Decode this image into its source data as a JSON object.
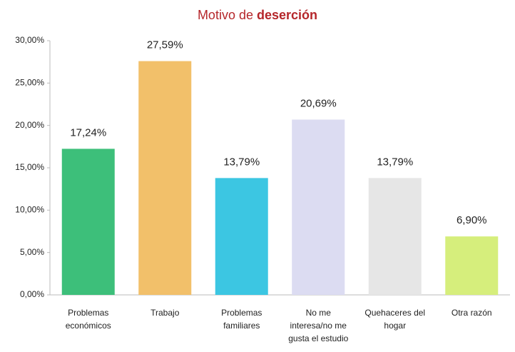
{
  "chart_data": {
    "type": "bar",
    "title": [
      "Motivo de",
      "deserción"
    ],
    "categories": [
      [
        "Problemas",
        "económicos"
      ],
      [
        "Trabajo"
      ],
      [
        "Problemas",
        "familiares"
      ],
      [
        "No me",
        "interesa/no me",
        "gusta el estudio"
      ],
      [
        "Quehaceres del",
        "hogar"
      ],
      [
        "Otra razón"
      ]
    ],
    "values": [
      17.24,
      27.59,
      13.79,
      20.69,
      13.79,
      6.9
    ],
    "value_labels": [
      "17,24%",
      "27,59%",
      "13,79%",
      "20,69%",
      "13,79%",
      "6,90%"
    ],
    "colors": [
      "#3dbf7a",
      "#f2c06a",
      "#3cc6e2",
      "#dcdcf2",
      "#e6e6e6",
      "#d6ee7c"
    ],
    "ylim": [
      0,
      30
    ],
    "yticks": [
      {
        "value": 0,
        "label": "0,00%"
      },
      {
        "value": 5,
        "label": "5,00%"
      },
      {
        "value": 10,
        "label": "10,00%"
      },
      {
        "value": 15,
        "label": "15,00%"
      },
      {
        "value": 20,
        "label": "20,00%"
      },
      {
        "value": 25,
        "label": "25,00%"
      },
      {
        "value": 30,
        "label": "30,00%"
      }
    ]
  }
}
